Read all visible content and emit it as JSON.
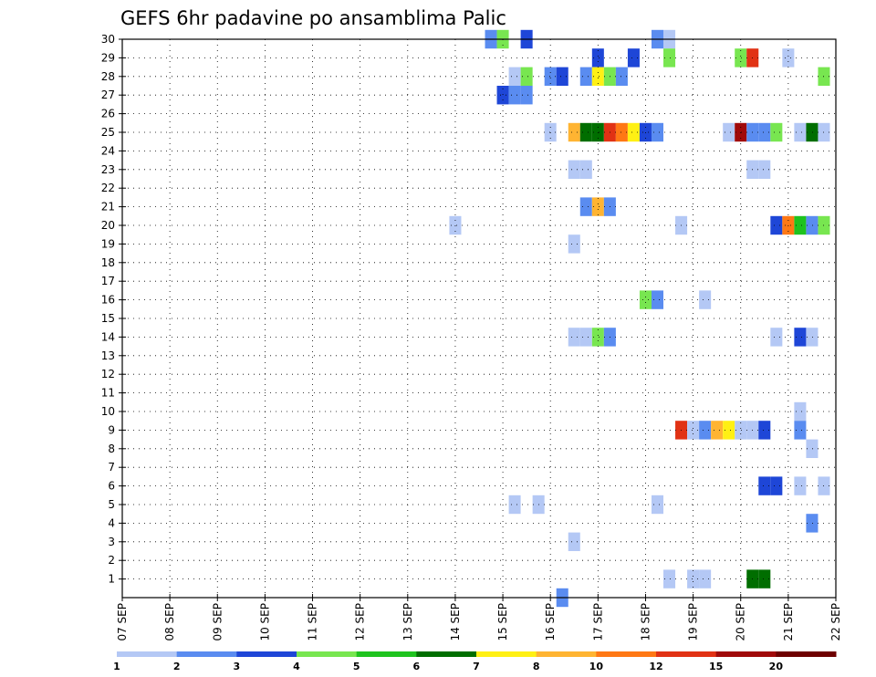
{
  "chart_data": {
    "type": "heatmap",
    "title": "GEFS 6hr padavine po ansamblima Palic",
    "xlabel": "",
    "ylabel": "",
    "x_tick_labels": [
      "07 SEP",
      "08 SEP",
      "09 SEP",
      "10 SEP",
      "11 SEP",
      "12 SEP",
      "13 SEP",
      "14 SEP",
      "15 SEP",
      "16 SEP",
      "17 SEP",
      "18 SEP",
      "19 SEP",
      "20 SEP",
      "21 SEP",
      "22 SEP"
    ],
    "xlim": [
      0,
      60
    ],
    "y_tick_labels": [
      "1",
      "2",
      "3",
      "4",
      "5",
      "6",
      "7",
      "8",
      "9",
      "10",
      "11",
      "12",
      "13",
      "14",
      "15",
      "16",
      "17",
      "18",
      "19",
      "20",
      "21",
      "22",
      "23",
      "24",
      "25",
      "26",
      "27",
      "28",
      "29",
      "30"
    ],
    "ylim": [
      0,
      30
    ],
    "grid": true,
    "legend": {
      "position": "bottom",
      "levels": [
        "1",
        "2",
        "3",
        "4",
        "5",
        "6",
        "7",
        "8",
        "10",
        "12",
        "15",
        "20"
      ],
      "colors": [
        "#b4c8f5",
        "#5a8cf0",
        "#1e46d7",
        "#78e650",
        "#1ec31e",
        "#006e00",
        "#fff014",
        "#ffb432",
        "#ff7814",
        "#e13214",
        "#a00a0a",
        "#6e0000"
      ]
    },
    "cells": [
      {
        "member": 30,
        "step": 31.0,
        "cls": 2
      },
      {
        "member": 30,
        "step": 32.0,
        "cls": 4
      },
      {
        "member": 30,
        "step": 34.0,
        "cls": 3
      },
      {
        "member": 30,
        "step": 45.0,
        "cls": 2
      },
      {
        "member": 30,
        "step": 46.0,
        "cls": 1
      },
      {
        "member": 29,
        "step": 40.0,
        "cls": 3
      },
      {
        "member": 29,
        "step": 43.0,
        "cls": 3
      },
      {
        "member": 29,
        "step": 46.0,
        "cls": 4
      },
      {
        "member": 29,
        "step": 52.0,
        "cls": 4
      },
      {
        "member": 29,
        "step": 53.0,
        "cls": 10
      },
      {
        "member": 29,
        "step": 56.0,
        "cls": 1
      },
      {
        "member": 28,
        "step": 33.0,
        "cls": 1
      },
      {
        "member": 28,
        "step": 34.0,
        "cls": 4
      },
      {
        "member": 28,
        "step": 36.0,
        "cls": 2
      },
      {
        "member": 28,
        "step": 37.0,
        "cls": 3
      },
      {
        "member": 28,
        "step": 39.0,
        "cls": 2
      },
      {
        "member": 28,
        "step": 40.0,
        "cls": 7
      },
      {
        "member": 28,
        "step": 41.0,
        "cls": 4
      },
      {
        "member": 28,
        "step": 42.0,
        "cls": 2
      },
      {
        "member": 28,
        "step": 59.0,
        "cls": 4
      },
      {
        "member": 27,
        "step": 32.0,
        "cls": 3
      },
      {
        "member": 27,
        "step": 33.0,
        "cls": 2
      },
      {
        "member": 27,
        "step": 34.0,
        "cls": 2
      },
      {
        "member": 25,
        "step": 36.0,
        "cls": 1
      },
      {
        "member": 25,
        "step": 38.0,
        "cls": 8
      },
      {
        "member": 25,
        "step": 39.0,
        "cls": 6
      },
      {
        "member": 25,
        "step": 40.0,
        "cls": 6
      },
      {
        "member": 25,
        "step": 41.0,
        "cls": 10
      },
      {
        "member": 25,
        "step": 42.0,
        "cls": 9
      },
      {
        "member": 25,
        "step": 43.0,
        "cls": 7
      },
      {
        "member": 25,
        "step": 44.0,
        "cls": 3
      },
      {
        "member": 25,
        "step": 45.0,
        "cls": 2
      },
      {
        "member": 25,
        "step": 51.0,
        "cls": 1
      },
      {
        "member": 25,
        "step": 52.0,
        "cls": 11
      },
      {
        "member": 25,
        "step": 53.0,
        "cls": 2
      },
      {
        "member": 25,
        "step": 54.0,
        "cls": 2
      },
      {
        "member": 25,
        "step": 55.0,
        "cls": 4
      },
      {
        "member": 25,
        "step": 57.0,
        "cls": 1
      },
      {
        "member": 25,
        "step": 58.0,
        "cls": 6
      },
      {
        "member": 25,
        "step": 59.0,
        "cls": 1
      },
      {
        "member": 23,
        "step": 38.0,
        "cls": 1
      },
      {
        "member": 23,
        "step": 39.0,
        "cls": 1
      },
      {
        "member": 23,
        "step": 53.0,
        "cls": 1
      },
      {
        "member": 23,
        "step": 54.0,
        "cls": 1
      },
      {
        "member": 21,
        "step": 39.0,
        "cls": 2
      },
      {
        "member": 21,
        "step": 40.0,
        "cls": 8
      },
      {
        "member": 21,
        "step": 41.0,
        "cls": 2
      },
      {
        "member": 20,
        "step": 28.0,
        "cls": 1
      },
      {
        "member": 20,
        "step": 47.0,
        "cls": 1
      },
      {
        "member": 20,
        "step": 55.0,
        "cls": 3
      },
      {
        "member": 20,
        "step": 56.0,
        "cls": 9
      },
      {
        "member": 20,
        "step": 57.0,
        "cls": 5
      },
      {
        "member": 20,
        "step": 58.0,
        "cls": 2
      },
      {
        "member": 20,
        "step": 59.0,
        "cls": 4
      },
      {
        "member": 19,
        "step": 38.0,
        "cls": 1
      },
      {
        "member": 16,
        "step": 44.0,
        "cls": 4
      },
      {
        "member": 16,
        "step": 45.0,
        "cls": 2
      },
      {
        "member": 16,
        "step": 49.0,
        "cls": 1
      },
      {
        "member": 14,
        "step": 38.0,
        "cls": 1
      },
      {
        "member": 14,
        "step": 39.0,
        "cls": 1
      },
      {
        "member": 14,
        "step": 40.0,
        "cls": 4
      },
      {
        "member": 14,
        "step": 41.0,
        "cls": 2
      },
      {
        "member": 14,
        "step": 55.0,
        "cls": 1
      },
      {
        "member": 14,
        "step": 57.0,
        "cls": 3
      },
      {
        "member": 14,
        "step": 58.0,
        "cls": 1
      },
      {
        "member": 10,
        "step": 57.0,
        "cls": 1
      },
      {
        "member": 9,
        "step": 47.0,
        "cls": 10
      },
      {
        "member": 9,
        "step": 48.0,
        "cls": 1
      },
      {
        "member": 9,
        "step": 49.0,
        "cls": 2
      },
      {
        "member": 9,
        "step": 50.0,
        "cls": 8
      },
      {
        "member": 9,
        "step": 51.0,
        "cls": 7
      },
      {
        "member": 9,
        "step": 52.0,
        "cls": 1
      },
      {
        "member": 9,
        "step": 53.0,
        "cls": 1
      },
      {
        "member": 9,
        "step": 54.0,
        "cls": 3
      },
      {
        "member": 9,
        "step": 57.0,
        "cls": 2
      },
      {
        "member": 8,
        "step": 58.0,
        "cls": 1
      },
      {
        "member": 6,
        "step": 54.0,
        "cls": 3
      },
      {
        "member": 6,
        "step": 55.0,
        "cls": 3
      },
      {
        "member": 6,
        "step": 57.0,
        "cls": 1
      },
      {
        "member": 6,
        "step": 59.0,
        "cls": 1
      },
      {
        "member": 5,
        "step": 33.0,
        "cls": 1
      },
      {
        "member": 5,
        "step": 35.0,
        "cls": 1
      },
      {
        "member": 5,
        "step": 45.0,
        "cls": 1
      },
      {
        "member": 4,
        "step": 58.0,
        "cls": 2
      },
      {
        "member": 3,
        "step": 38.0,
        "cls": 1
      },
      {
        "member": 1,
        "step": 46.0,
        "cls": 1
      },
      {
        "member": 1,
        "step": 48.0,
        "cls": 1
      },
      {
        "member": 1,
        "step": 49.0,
        "cls": 1
      },
      {
        "member": 1,
        "step": 53.0,
        "cls": 6
      },
      {
        "member": 1,
        "step": 54.0,
        "cls": 6
      },
      {
        "member": 0,
        "step": 37.0,
        "cls": 2
      }
    ]
  }
}
